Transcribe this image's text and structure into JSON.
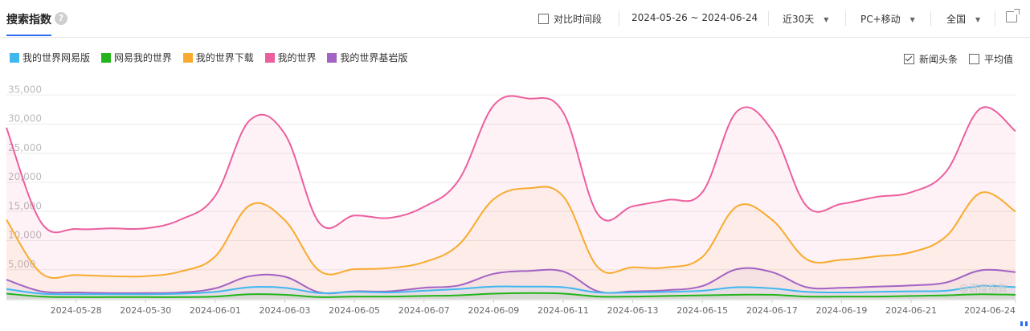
{
  "header": {
    "title": "搜索指数",
    "help_icon": "?",
    "compare_label": "对比时间段",
    "date_range": "2024-05-26 ~ 2024-06-24",
    "period_select": "近30天",
    "device_select": "PC+移动",
    "region_select": "全国",
    "export_icon": "external-link-icon"
  },
  "options": {
    "news_label": "新闻头条",
    "news_checked": true,
    "avg_label": "平均值",
    "avg_checked": false
  },
  "watermark": "@百度指数",
  "colors": {
    "s0": "#3fb8ef",
    "s1": "#22b41a",
    "s2": "#f8ab2e",
    "s3": "#ec5f9e",
    "s4": "#a362c4"
  },
  "chart_data": {
    "type": "area",
    "x": [
      "2024-05-26",
      "2024-05-27",
      "2024-05-28",
      "2024-05-29",
      "2024-05-30",
      "2024-05-31",
      "2024-06-01",
      "2024-06-02",
      "2024-06-03",
      "2024-06-04",
      "2024-06-05",
      "2024-06-06",
      "2024-06-07",
      "2024-06-08",
      "2024-06-09",
      "2024-06-10",
      "2024-06-11",
      "2024-06-12",
      "2024-06-13",
      "2024-06-14",
      "2024-06-15",
      "2024-06-16",
      "2024-06-17",
      "2024-06-18",
      "2024-06-19",
      "2024-06-20",
      "2024-06-21",
      "2024-06-22",
      "2024-06-23",
      "2024-06-24"
    ],
    "xticks": [
      "2024-05-28",
      "2024-05-30",
      "2024-06-01",
      "2024-06-03",
      "2024-06-05",
      "2024-06-07",
      "2024-06-09",
      "2024-06-11",
      "2024-06-13",
      "2024-06-15",
      "2024-06-17",
      "2024-06-19",
      "2024-06-21",
      "2024-06-24"
    ],
    "yticks": [
      5000,
      10000,
      15000,
      20000,
      25000,
      30000,
      35000
    ],
    "ytick_labels": [
      "5,000",
      "10,000",
      "15,000",
      "20,000",
      "25,000",
      "30,000",
      "35,000"
    ],
    "ylim": [
      0,
      36000
    ],
    "legend": "top-left",
    "grid": true,
    "series": [
      {
        "name": "我的世界网易版",
        "values": [
          1700,
          900,
          800,
          800,
          800,
          900,
          1200,
          2000,
          1900,
          1000,
          1200,
          1100,
          1400,
          1700,
          2100,
          2100,
          2000,
          1100,
          1100,
          1200,
          1400,
          2000,
          1800,
          1200,
          1100,
          1200,
          1300,
          1400,
          2200,
          2000
        ]
      },
      {
        "name": "网易我的世界",
        "values": [
          900,
          400,
          300,
          300,
          300,
          300,
          400,
          800,
          700,
          300,
          400,
          400,
          500,
          600,
          900,
          1000,
          900,
          400,
          400,
          500,
          600,
          700,
          700,
          400,
          400,
          400,
          500,
          600,
          800,
          700
        ]
      },
      {
        "name": "我的世界下载",
        "values": [
          13600,
          4400,
          4100,
          3900,
          3900,
          4700,
          7300,
          16100,
          13500,
          4800,
          5100,
          5300,
          6300,
          9300,
          17100,
          19000,
          17600,
          5400,
          5400,
          5400,
          7200,
          15900,
          13600,
          6800,
          6700,
          7300,
          8000,
          10700,
          18200,
          15000
        ]
      },
      {
        "name": "我的世界",
        "values": [
          29400,
          13100,
          12000,
          12100,
          12100,
          13600,
          17700,
          30700,
          28300,
          13000,
          14300,
          13900,
          15800,
          20400,
          33200,
          34400,
          32000,
          14500,
          15900,
          17000,
          18300,
          32200,
          29000,
          15900,
          16300,
          17500,
          18300,
          21800,
          32700,
          28800
        ]
      },
      {
        "name": "我的世界基岩版",
        "values": [
          3300,
          1300,
          1100,
          1000,
          1000,
          1100,
          1800,
          3900,
          3800,
          1100,
          1300,
          1300,
          1900,
          2300,
          4300,
          4800,
          4700,
          1300,
          1300,
          1500,
          2200,
          5100,
          4600,
          2000,
          1900,
          2100,
          2300,
          2800,
          4900,
          4600
        ]
      }
    ]
  }
}
